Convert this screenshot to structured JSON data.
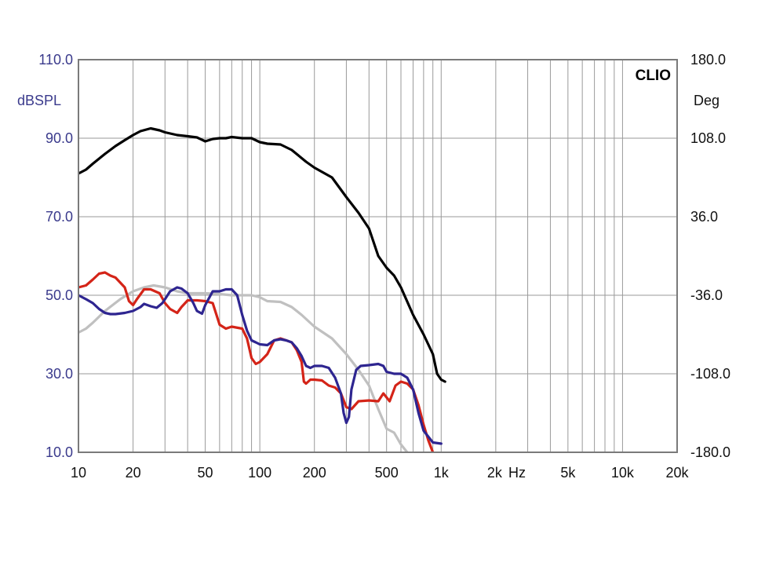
{
  "chart_data": {
    "type": "line",
    "brand": "CLIO",
    "x_scale": "log",
    "xlim": [
      10,
      20000
    ],
    "ylim": [
      10,
      110
    ],
    "y2lim": [
      -180,
      180
    ],
    "grid": true,
    "left_axis_label": "dBSPL",
    "right_axis_label": "Deg",
    "x_unit_label": "Hz",
    "colors": {
      "frame": "#7a7a7a",
      "grid": "#9a9a9a",
      "left_ticks": "#3a3a8c",
      "background": "#ffffff"
    },
    "left_ticks": [
      {
        "value": 110,
        "label": "110.0"
      },
      {
        "value": 90,
        "label": "90.0"
      },
      {
        "value": 70,
        "label": "70.0"
      },
      {
        "value": 50,
        "label": "50.0"
      },
      {
        "value": 30,
        "label": "30.0"
      },
      {
        "value": 10,
        "label": "10.0"
      }
    ],
    "right_ticks": [
      {
        "value": 180,
        "label": "180.0"
      },
      {
        "value": 108,
        "label": "108.0"
      },
      {
        "value": 36,
        "label": "36.0"
      },
      {
        "value": -36,
        "label": "-36.0"
      },
      {
        "value": -108,
        "label": "-108.0"
      },
      {
        "value": -180,
        "label": "-180.0"
      }
    ],
    "x_ticks": [
      {
        "value": 10,
        "label": "10"
      },
      {
        "value": 20,
        "label": "20"
      },
      {
        "value": 50,
        "label": "50"
      },
      {
        "value": 100,
        "label": "100"
      },
      {
        "value": 200,
        "label": "200"
      },
      {
        "value": 500,
        "label": "500"
      },
      {
        "value": 1000,
        "label": "1k"
      },
      {
        "value": 2000,
        "label": "2k"
      },
      {
        "value": 5000,
        "label": "5k"
      },
      {
        "value": 10000,
        "label": "10k"
      },
      {
        "value": 20000,
        "label": "20k"
      }
    ],
    "series": [
      {
        "color": "#000000",
        "points": [
          [
            10,
            81
          ],
          [
            11,
            82
          ],
          [
            12,
            83.5
          ],
          [
            14,
            86
          ],
          [
            16,
            88
          ],
          [
            18,
            89.5
          ],
          [
            20,
            90.8
          ],
          [
            22,
            91.8
          ],
          [
            25,
            92.5
          ],
          [
            28,
            92
          ],
          [
            30,
            91.5
          ],
          [
            35,
            90.8
          ],
          [
            40,
            90.5
          ],
          [
            45,
            90.2
          ],
          [
            50,
            89.2
          ],
          [
            55,
            89.8
          ],
          [
            60,
            90
          ],
          [
            65,
            90
          ],
          [
            70,
            90.3
          ],
          [
            80,
            90
          ],
          [
            90,
            90
          ],
          [
            100,
            89
          ],
          [
            110,
            88.6
          ],
          [
            130,
            88.4
          ],
          [
            150,
            87
          ],
          [
            180,
            84
          ],
          [
            200,
            82.5
          ],
          [
            250,
            80
          ],
          [
            300,
            75
          ],
          [
            350,
            71
          ],
          [
            400,
            67
          ],
          [
            450,
            60
          ],
          [
            500,
            57
          ],
          [
            550,
            55
          ],
          [
            600,
            52
          ],
          [
            700,
            45
          ],
          [
            800,
            40
          ],
          [
            900,
            35
          ],
          [
            950,
            30
          ],
          [
            1000,
            28.5
          ],
          [
            1050,
            28
          ]
        ]
      },
      {
        "color": "#c0c0c0",
        "points": [
          [
            10,
            40.5
          ],
          [
            11,
            41.5
          ],
          [
            12,
            43
          ],
          [
            14,
            46
          ],
          [
            17,
            49
          ],
          [
            20,
            51
          ],
          [
            23,
            52
          ],
          [
            26,
            52.5
          ],
          [
            30,
            52
          ],
          [
            35,
            51
          ],
          [
            40,
            50.5
          ],
          [
            50,
            50.5
          ],
          [
            60,
            50.3
          ],
          [
            70,
            50
          ],
          [
            80,
            50
          ],
          [
            90,
            50
          ],
          [
            100,
            49.5
          ],
          [
            110,
            48.5
          ],
          [
            130,
            48.3
          ],
          [
            150,
            47
          ],
          [
            170,
            45
          ],
          [
            200,
            42
          ],
          [
            250,
            39
          ],
          [
            300,
            35
          ],
          [
            350,
            31
          ],
          [
            400,
            27
          ],
          [
            450,
            21
          ],
          [
            500,
            16
          ],
          [
            550,
            15
          ],
          [
            600,
            12
          ],
          [
            650,
            10
          ]
        ]
      },
      {
        "color": "#d42418",
        "points": [
          [
            10,
            52
          ],
          [
            11,
            52.5
          ],
          [
            12,
            54
          ],
          [
            13,
            55.5
          ],
          [
            14,
            55.8
          ],
          [
            15,
            55
          ],
          [
            16,
            54.5
          ],
          [
            18,
            52
          ],
          [
            19,
            48.5
          ],
          [
            20,
            47.5
          ],
          [
            21,
            49
          ],
          [
            23,
            51.5
          ],
          [
            25,
            51.5
          ],
          [
            28,
            50.5
          ],
          [
            30,
            48
          ],
          [
            32,
            46.5
          ],
          [
            35,
            45.5
          ],
          [
            37,
            47
          ],
          [
            40,
            48.7
          ],
          [
            45,
            48.7
          ],
          [
            50,
            48.5
          ],
          [
            55,
            48
          ],
          [
            60,
            42.5
          ],
          [
            65,
            41.5
          ],
          [
            70,
            42
          ],
          [
            80,
            41.5
          ],
          [
            85,
            39
          ],
          [
            90,
            34
          ],
          [
            95,
            32.5
          ],
          [
            100,
            33
          ],
          [
            110,
            35
          ],
          [
            120,
            38.5
          ],
          [
            130,
            39
          ],
          [
            140,
            38.5
          ],
          [
            150,
            38
          ],
          [
            160,
            36
          ],
          [
            170,
            33
          ],
          [
            175,
            28
          ],
          [
            180,
            27.5
          ],
          [
            190,
            28.5
          ],
          [
            200,
            28.5
          ],
          [
            220,
            28.3
          ],
          [
            240,
            27
          ],
          [
            260,
            26.5
          ],
          [
            280,
            25
          ],
          [
            300,
            21.5
          ],
          [
            320,
            21
          ],
          [
            350,
            23
          ],
          [
            400,
            23.2
          ],
          [
            450,
            23
          ],
          [
            480,
            25
          ],
          [
            520,
            23
          ],
          [
            560,
            27
          ],
          [
            600,
            28
          ],
          [
            650,
            27.5
          ],
          [
            700,
            26
          ],
          [
            750,
            22
          ],
          [
            800,
            17
          ],
          [
            850,
            13
          ],
          [
            900,
            10
          ]
        ]
      },
      {
        "color": "#2e2590",
        "points": [
          [
            10,
            50
          ],
          [
            11,
            49
          ],
          [
            12,
            48
          ],
          [
            13,
            46.5
          ],
          [
            14,
            45.5
          ],
          [
            15,
            45.2
          ],
          [
            16,
            45.2
          ],
          [
            18,
            45.5
          ],
          [
            20,
            46
          ],
          [
            22,
            47
          ],
          [
            23,
            47.8
          ],
          [
            25,
            47.2
          ],
          [
            27,
            46.8
          ],
          [
            29,
            48
          ],
          [
            30,
            49
          ],
          [
            32,
            51
          ],
          [
            35,
            52
          ],
          [
            37,
            51.7
          ],
          [
            40,
            50.5
          ],
          [
            43,
            48
          ],
          [
            45,
            46
          ],
          [
            48,
            45.3
          ],
          [
            50,
            47.5
          ],
          [
            55,
            51
          ],
          [
            60,
            51
          ],
          [
            65,
            51.5
          ],
          [
            70,
            51.5
          ],
          [
            75,
            50
          ],
          [
            80,
            45
          ],
          [
            85,
            41
          ],
          [
            90,
            38.5
          ],
          [
            95,
            38
          ],
          [
            100,
            37.5
          ],
          [
            110,
            37.3
          ],
          [
            120,
            38.5
          ],
          [
            130,
            38.8
          ],
          [
            140,
            38.5
          ],
          [
            150,
            38
          ],
          [
            160,
            36.5
          ],
          [
            170,
            34.5
          ],
          [
            180,
            32
          ],
          [
            190,
            31.5
          ],
          [
            200,
            32
          ],
          [
            220,
            32
          ],
          [
            240,
            31.5
          ],
          [
            260,
            29
          ],
          [
            280,
            25
          ],
          [
            290,
            20
          ],
          [
            300,
            17.5
          ],
          [
            310,
            19
          ],
          [
            320,
            26
          ],
          [
            340,
            31
          ],
          [
            360,
            32
          ],
          [
            400,
            32.2
          ],
          [
            450,
            32.5
          ],
          [
            480,
            32
          ],
          [
            500,
            30.5
          ],
          [
            550,
            30
          ],
          [
            600,
            30
          ],
          [
            650,
            29
          ],
          [
            700,
            26
          ],
          [
            750,
            20
          ],
          [
            800,
            15.5
          ],
          [
            900,
            12.5
          ],
          [
            1000,
            12.2
          ]
        ]
      }
    ]
  }
}
